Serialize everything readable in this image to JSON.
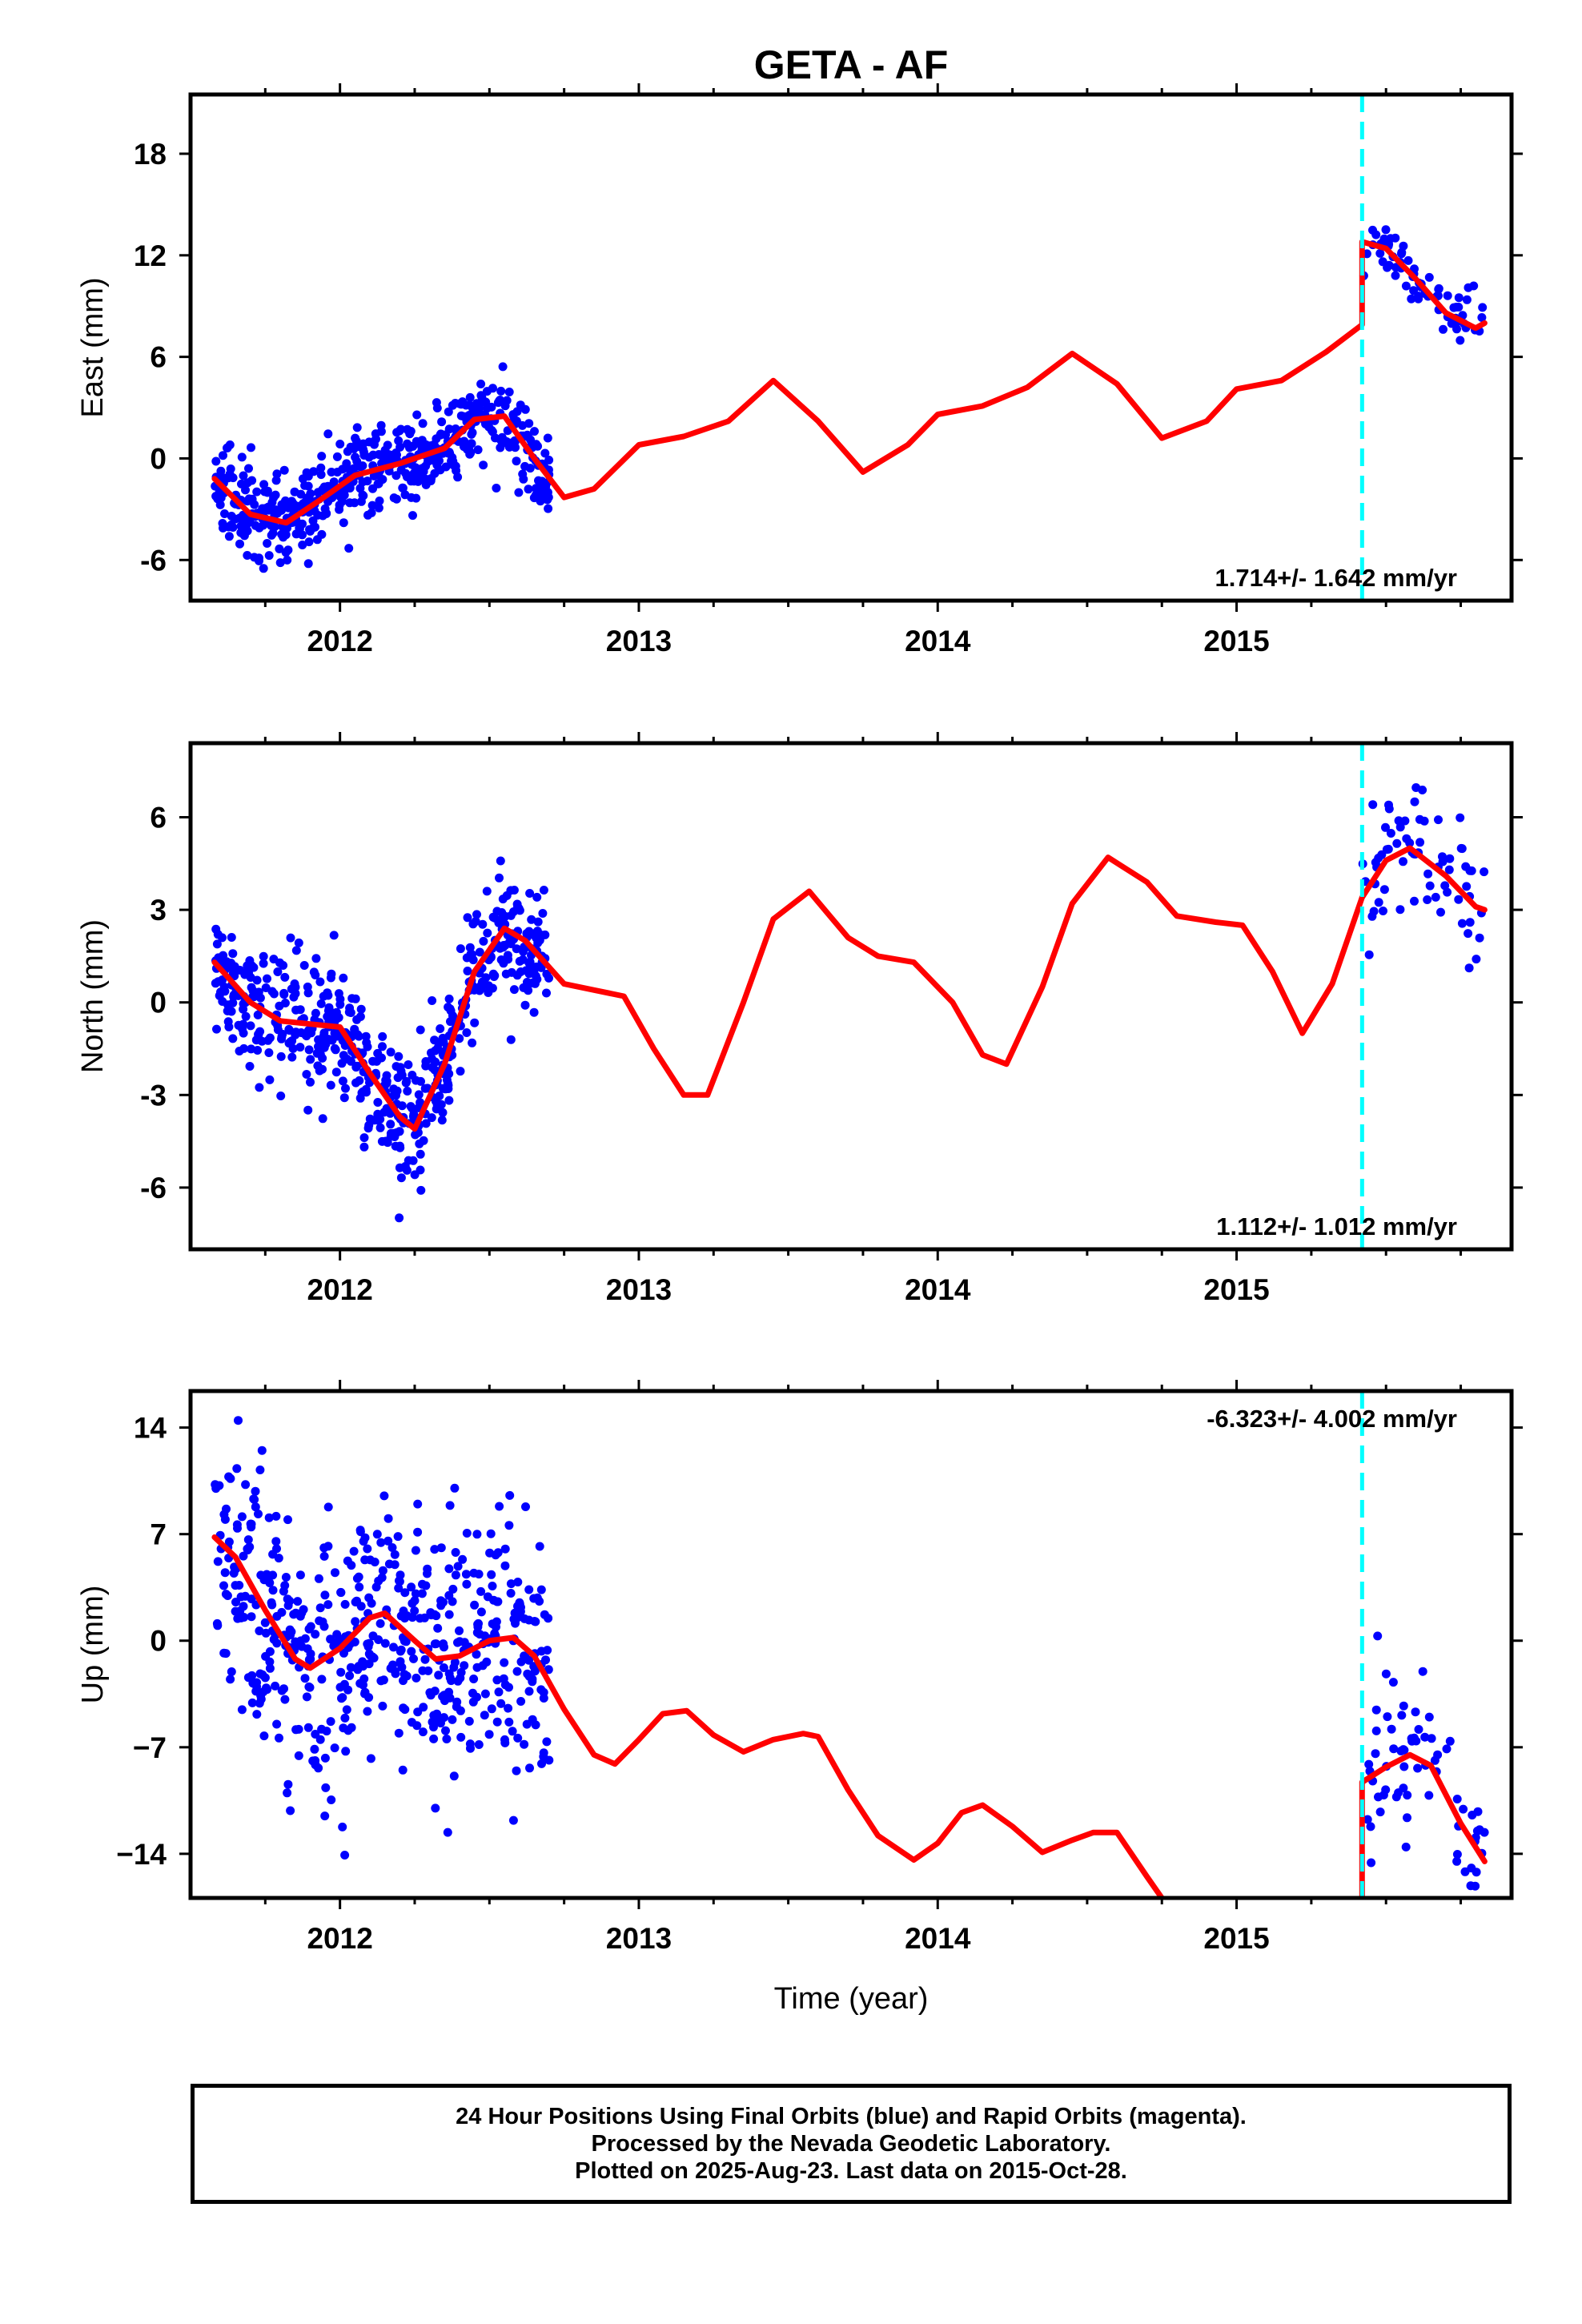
{
  "title": "GETA - AF",
  "xlabel": "Time (year)",
  "colors": {
    "data": "#0000ff",
    "model": "#ff0000",
    "offset": "#00ffff",
    "frame": "#000000"
  },
  "footer": {
    "line1": "24 Hour Positions Using Final Orbits (blue) and Rapid Orbits (magenta).",
    "line2": "Processed by the Nevada Geodetic Laboratory.",
    "line3": "Plotted on 2025-Aug-23. Last data on 2015-Oct-28."
  },
  "chart_data": [
    {
      "type": "scatter",
      "component": "east",
      "title": "GETA - AF",
      "xlabel": "",
      "ylabel": "East (mm)",
      "xlim": [
        2011.5,
        2015.92
      ],
      "ylim": [
        -8.4,
        21.5
      ],
      "yticks": [
        -6,
        0,
        6,
        12,
        18
      ],
      "yticklabels": [
        "-6",
        "0",
        "6",
        "12",
        "18"
      ],
      "xticks": [
        2012,
        2013,
        2014,
        2015
      ],
      "xticklabels": [
        "2012",
        "2013",
        "2014",
        "2015"
      ],
      "velocity_label": "1.714+/- 1.642 mm/yr",
      "label_position": "bottom-right",
      "offset_epoch": 2015.42,
      "scatter_series": {
        "name": "Final Orbits",
        "t0": 2011.58,
        "t1": 2012.7,
        "noise": 1.2,
        "late_t0": 2015.42,
        "late_t1": 2015.83,
        "late_noise": 0.9,
        "n": 560,
        "late_n": 70
      },
      "model_series": {
        "name": "model",
        "x": [
          2011.58,
          2011.7,
          2011.82,
          2011.93,
          2012.05,
          2012.2,
          2012.35,
          2012.45,
          2012.55,
          2012.65,
          2012.75,
          2012.85,
          2013.0,
          2013.15,
          2013.3,
          2013.45,
          2013.6,
          2013.75,
          2013.9,
          2014.0,
          2014.15,
          2014.3,
          2014.45,
          2014.6,
          2014.75,
          2014.9,
          2015.0,
          2015.15,
          2015.3,
          2015.42,
          2015.42,
          2015.5,
          2015.6,
          2015.7,
          2015.8,
          2015.83
        ],
        "y": [
          -1.2,
          -3.3,
          -3.8,
          -2.5,
          -1.0,
          -0.3,
          0.6,
          2.3,
          2.5,
          0.0,
          -2.3,
          -1.8,
          0.8,
          1.3,
          2.2,
          4.6,
          2.2,
          -0.8,
          0.8,
          2.6,
          3.1,
          4.2,
          6.2,
          4.4,
          1.2,
          2.2,
          4.1,
          4.6,
          6.3,
          7.9,
          12.8,
          12.4,
          10.6,
          8.6,
          7.7,
          8.0
        ]
      }
    },
    {
      "type": "scatter",
      "component": "north",
      "xlabel": "",
      "ylabel": "North (mm)",
      "xlim": [
        2011.5,
        2015.92
      ],
      "ylim": [
        -8.0,
        8.4
      ],
      "yticks": [
        -6,
        -3,
        0,
        3,
        6
      ],
      "yticklabels": [
        "-6",
        "-3",
        "0",
        "3",
        "6"
      ],
      "xticks": [
        2012,
        2013,
        2014,
        2015
      ],
      "xticklabels": [
        "2012",
        "2013",
        "2014",
        "2015"
      ],
      "velocity_label": "1.112+/- 1.012 mm/yr",
      "label_position": "bottom-right",
      "offset_epoch": 2015.42,
      "scatter_series": {
        "name": "Final Orbits",
        "t0": 2011.58,
        "t1": 2012.7,
        "noise": 1.1,
        "late_t0": 2015.42,
        "late_t1": 2015.83,
        "late_noise": 1.2,
        "n": 560,
        "late_n": 70
      },
      "model_series": {
        "name": "model",
        "x": [
          2011.58,
          2011.7,
          2011.8,
          2011.9,
          2012.0,
          2012.1,
          2012.2,
          2012.25,
          2012.35,
          2012.45,
          2012.55,
          2012.62,
          2012.75,
          2012.85,
          2012.95,
          2013.05,
          2013.15,
          2013.23,
          2013.35,
          2013.45,
          2013.57,
          2013.7,
          2013.8,
          2013.92,
          2014.05,
          2014.15,
          2014.23,
          2014.35,
          2014.45,
          2014.57,
          2014.7,
          2014.8,
          2014.93,
          2015.02,
          2015.12,
          2015.22,
          2015.32,
          2015.42,
          2015.5,
          2015.58,
          2015.7,
          2015.8,
          2015.83
        ],
        "y": [
          1.3,
          0.0,
          -0.6,
          -0.7,
          -0.8,
          -2.3,
          -3.7,
          -4.1,
          -2.0,
          1.0,
          2.4,
          2.0,
          0.6,
          0.4,
          0.2,
          -1.5,
          -3.0,
          -3.0,
          0.0,
          2.7,
          3.6,
          2.1,
          1.5,
          1.3,
          0.0,
          -1.7,
          -2.0,
          0.5,
          3.2,
          4.7,
          3.9,
          2.8,
          2.6,
          2.5,
          1.0,
          -1.0,
          0.6,
          3.4,
          4.6,
          5.0,
          4.1,
          3.1,
          3.0
        ]
      }
    },
    {
      "type": "scatter",
      "component": "up",
      "xlabel": "Time (year)",
      "ylabel": "Up (mm)",
      "xlim": [
        2011.5,
        2015.92
      ],
      "ylim": [
        -16.9,
        16.4
      ],
      "yticks": [
        -14,
        -7,
        0,
        7,
        14
      ],
      "yticklabels": [
        "−14",
        "−7",
        "0",
        "7",
        "14"
      ],
      "xticks": [
        2012,
        2013,
        2014,
        2015
      ],
      "xticklabels": [
        "2012",
        "2013",
        "2014",
        "2015"
      ],
      "velocity_label": "-6.323+/- 4.002 mm/yr",
      "label_position": "top-right",
      "offset_epoch": 2015.42,
      "scatter_series": {
        "name": "Final Orbits",
        "t0": 2011.58,
        "t1": 2012.7,
        "noise": 4.2,
        "late_t0": 2015.42,
        "late_t1": 2015.83,
        "late_noise": 3.0,
        "n": 560,
        "late_n": 70
      },
      "model_series": {
        "name": "model",
        "x": [
          2011.58,
          2011.65,
          2011.75,
          2011.85,
          2011.9,
          2012.0,
          2012.1,
          2012.15,
          2012.25,
          2012.32,
          2012.4,
          2012.5,
          2012.58,
          2012.65,
          2012.75,
          2012.85,
          2012.92,
          2013.0,
          2013.08,
          2013.16,
          2013.25,
          2013.35,
          2013.45,
          2013.55,
          2013.6,
          2013.7,
          2013.8,
          2013.92,
          2014.0,
          2014.08,
          2014.15,
          2014.25,
          2014.35,
          2014.45,
          2014.52,
          2014.6,
          2014.7,
          2014.75
        ],
        "y": [
          6.8,
          5.5,
          2.0,
          -1.2,
          -1.8,
          -0.5,
          1.5,
          1.8,
          0.0,
          -1.2,
          -1.0,
          0.0,
          0.2,
          -1.0,
          -4.5,
          -7.5,
          -8.1,
          -6.5,
          -4.8,
          -4.6,
          -6.2,
          -7.3,
          -6.5,
          -6.1,
          -6.3,
          -9.8,
          -12.8,
          -14.4,
          -13.3,
          -11.3,
          -10.8,
          -12.2,
          -13.9,
          -13.1,
          -12.6,
          -12.6,
          -15.5,
          -16.9
        ]
      },
      "model_series_late": {
        "name": "model",
        "x": [
          2015.42,
          2015.42,
          2015.5,
          2015.58,
          2015.65,
          2015.75,
          2015.83
        ],
        "y": [
          -16.9,
          -9.3,
          -8.3,
          -7.5,
          -8.2,
          -12.0,
          -14.5
        ]
      }
    }
  ]
}
